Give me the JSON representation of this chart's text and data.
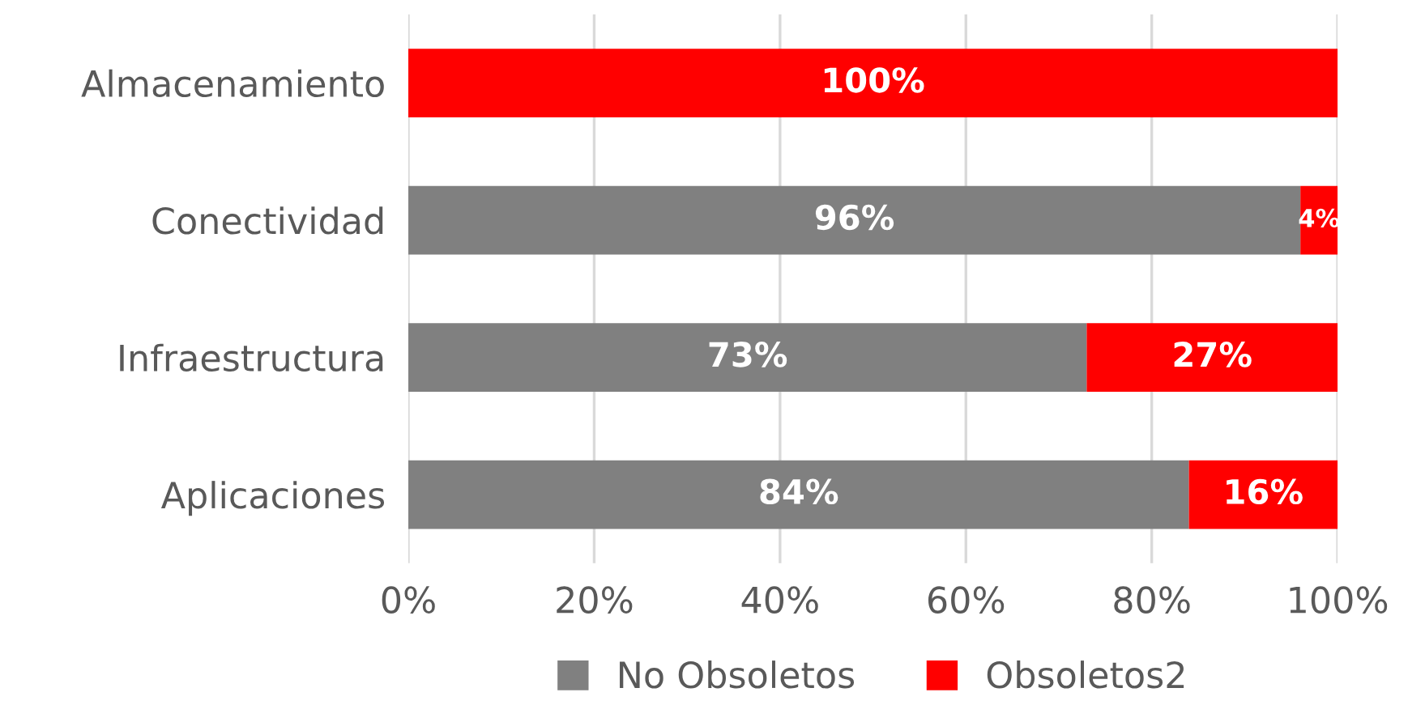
{
  "chart_data": {
    "type": "bar",
    "orientation": "horizontal",
    "stacked": true,
    "categories": [
      "Almacenamiento",
      "Conectividad",
      "Infraestructura",
      "Aplicaciones"
    ],
    "series": [
      {
        "name": "No Obsoletos",
        "color": "#808080",
        "values": [
          0,
          96,
          73,
          84
        ],
        "value_labels": [
          null,
          "96%",
          "73%",
          "84%"
        ]
      },
      {
        "name": "Obsoletos2",
        "color": "#ff0000",
        "values": [
          100,
          4,
          27,
          16
        ],
        "value_labels": [
          "100%",
          "4%",
          "27%",
          "16%"
        ]
      }
    ],
    "xlim": [
      0,
      100
    ],
    "xticks": [
      {
        "value": 0,
        "label": "0%"
      },
      {
        "value": 20,
        "label": "20%"
      },
      {
        "value": 40,
        "label": "40%"
      },
      {
        "value": 60,
        "label": "60%"
      },
      {
        "value": 80,
        "label": "80%"
      },
      {
        "value": 100,
        "label": "100%"
      }
    ],
    "grid": "x",
    "legend": "bottom"
  }
}
